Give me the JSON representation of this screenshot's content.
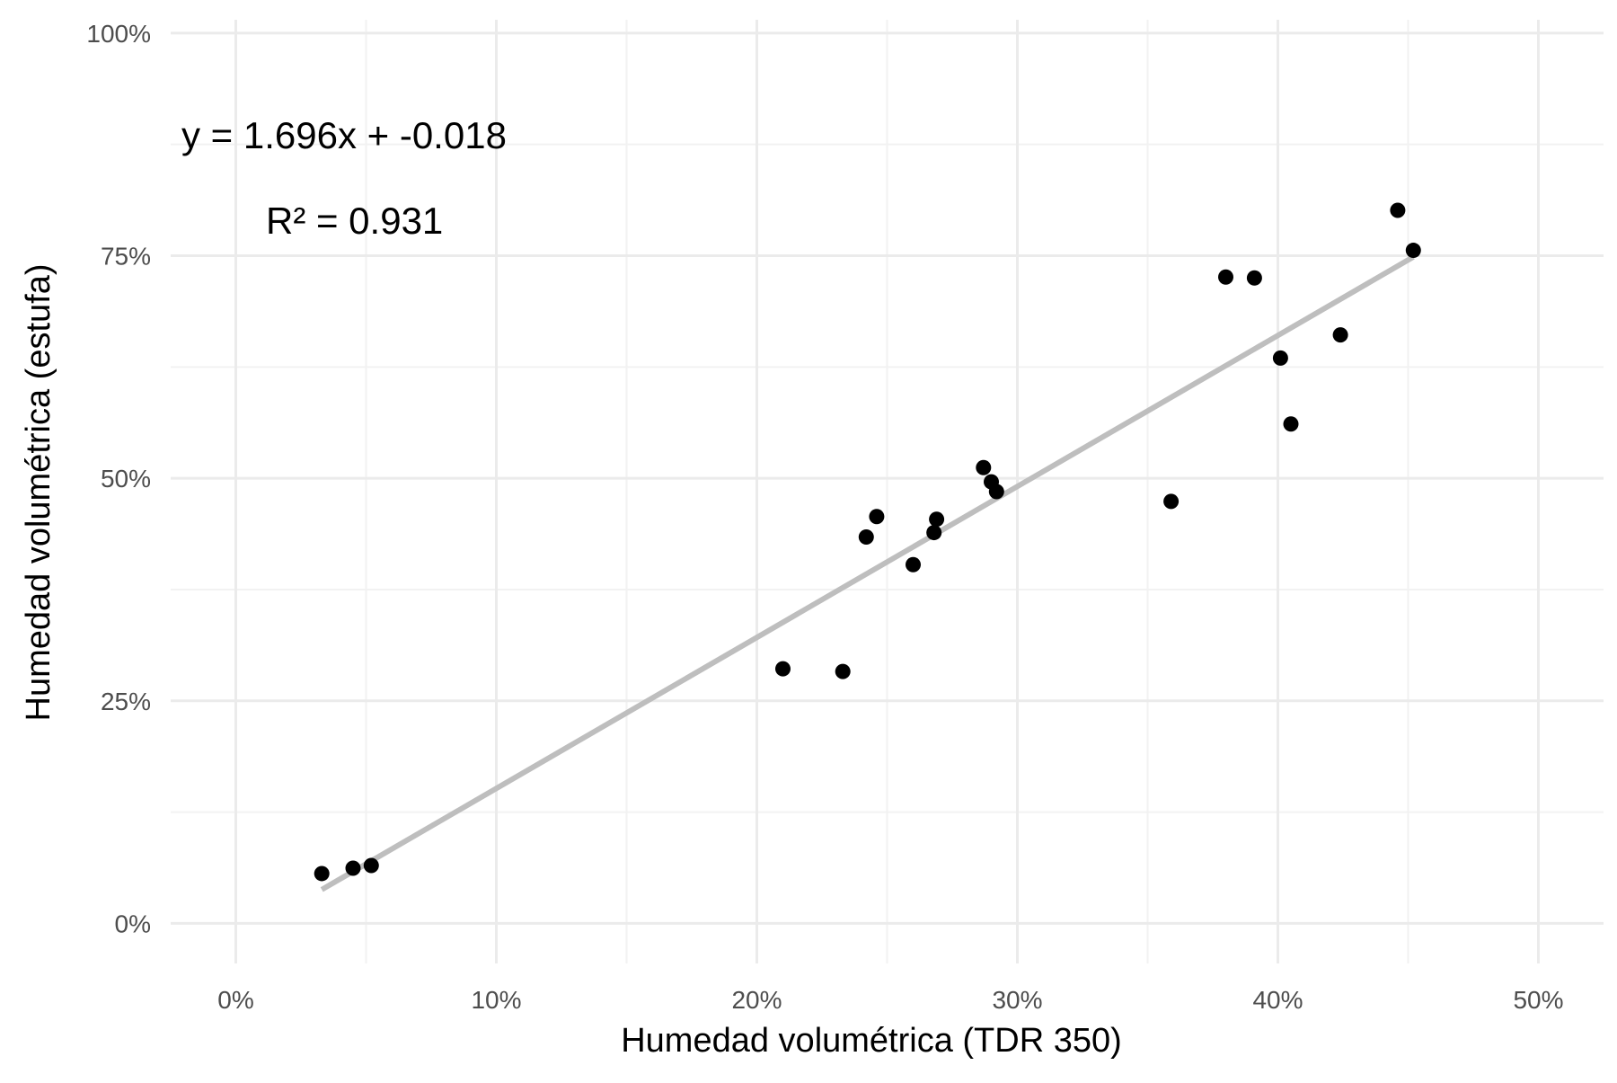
{
  "chart_data": {
    "type": "scatter",
    "xlabel": "Humedad volumétrica (TDR 350)",
    "ylabel": "Humedad volumétrica (estufa)",
    "x_ticks": [
      {
        "value": 0.0,
        "label": "0%"
      },
      {
        "value": 0.1,
        "label": "10%"
      },
      {
        "value": 0.2,
        "label": "20%"
      },
      {
        "value": 0.3,
        "label": "30%"
      },
      {
        "value": 0.4,
        "label": "40%"
      },
      {
        "value": 0.5,
        "label": "50%"
      }
    ],
    "y_ticks": [
      {
        "value": 0.0,
        "label": "0%"
      },
      {
        "value": 0.25,
        "label": "25%"
      },
      {
        "value": 0.5,
        "label": "50%"
      },
      {
        "value": 0.75,
        "label": "75%"
      },
      {
        "value": 1.0,
        "label": "100%"
      }
    ],
    "xlim": [
      -0.025,
      0.525
    ],
    "ylim": [
      -0.045,
      1.015
    ],
    "grid": true,
    "legend": "none",
    "annotations": {
      "equation": "y = 1.696x + -0.018",
      "r_squared": "R² = 0.931"
    },
    "fit_line": {
      "slope": 1.696,
      "intercept": -0.018,
      "x_range": [
        0.033,
        0.452
      ]
    },
    "points": [
      {
        "x": 0.033,
        "y": 0.056
      },
      {
        "x": 0.045,
        "y": 0.062
      },
      {
        "x": 0.052,
        "y": 0.065
      },
      {
        "x": 0.21,
        "y": 0.286
      },
      {
        "x": 0.233,
        "y": 0.283
      },
      {
        "x": 0.242,
        "y": 0.434
      },
      {
        "x": 0.246,
        "y": 0.457
      },
      {
        "x": 0.26,
        "y": 0.403
      },
      {
        "x": 0.268,
        "y": 0.439
      },
      {
        "x": 0.269,
        "y": 0.454
      },
      {
        "x": 0.287,
        "y": 0.512
      },
      {
        "x": 0.29,
        "y": 0.496
      },
      {
        "x": 0.292,
        "y": 0.485
      },
      {
        "x": 0.359,
        "y": 0.474
      },
      {
        "x": 0.38,
        "y": 0.726
      },
      {
        "x": 0.391,
        "y": 0.725
      },
      {
        "x": 0.401,
        "y": 0.635
      },
      {
        "x": 0.405,
        "y": 0.561
      },
      {
        "x": 0.424,
        "y": 0.661
      },
      {
        "x": 0.446,
        "y": 0.801
      },
      {
        "x": 0.452,
        "y": 0.756
      }
    ],
    "colors": {
      "points": "#000000",
      "fit_line": "#bebebe",
      "grid_major": "#ebebeb",
      "grid_minor": "#f2f2f2",
      "background": "#ffffff"
    }
  }
}
